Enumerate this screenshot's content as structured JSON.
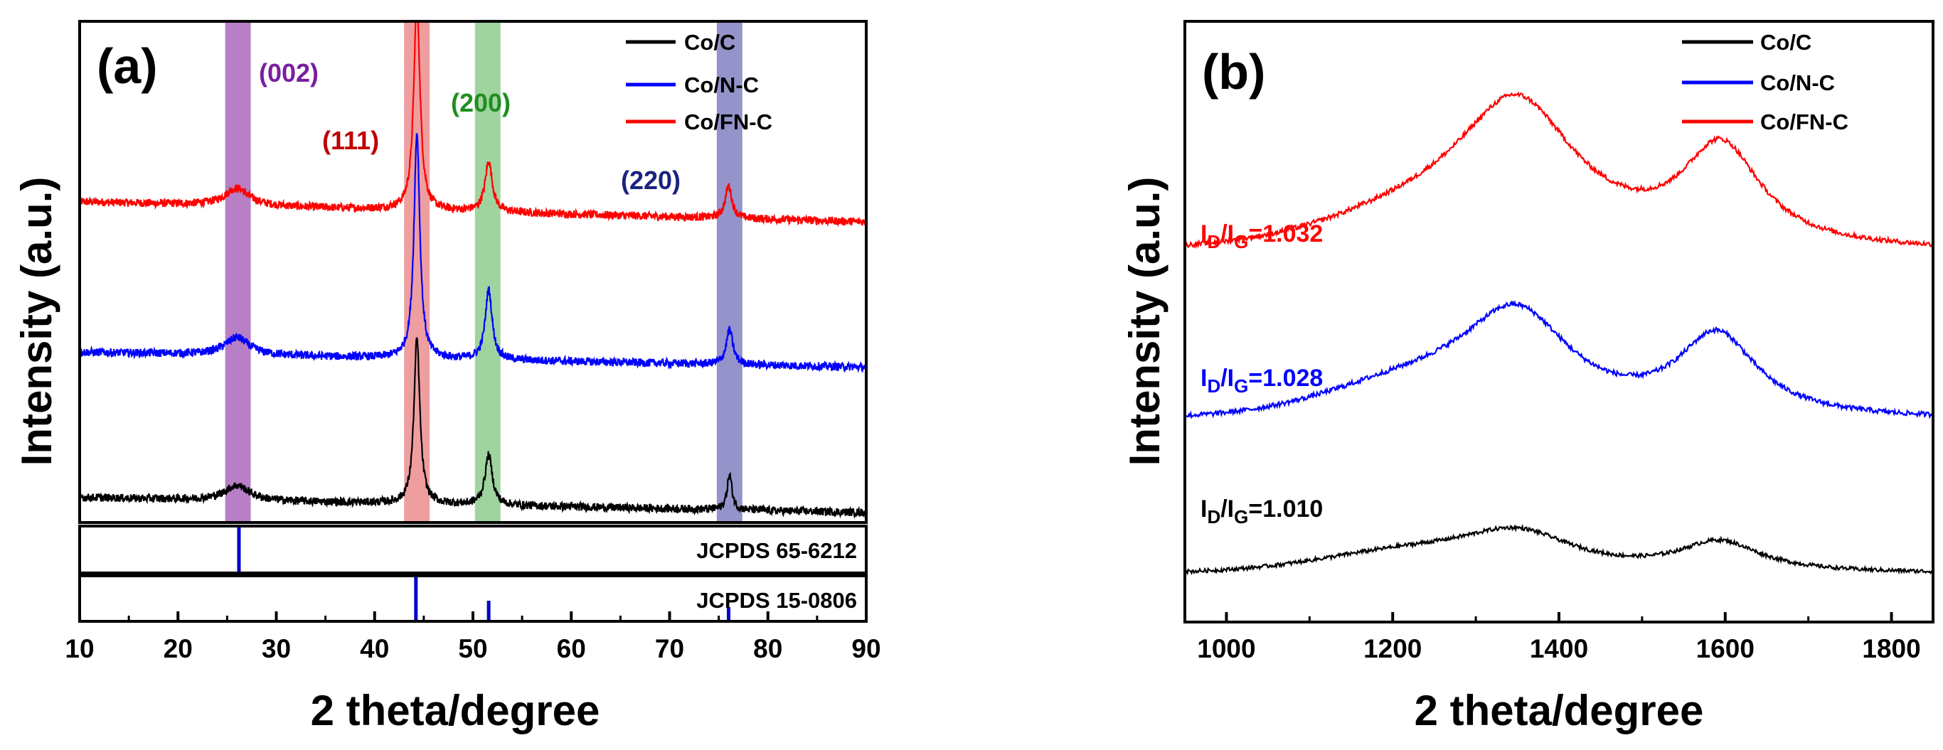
{
  "chart_data": [
    {
      "panel_label": "(a)",
      "type": "line",
      "xlabel": "2 theta/degree",
      "ylabel": "Intensity (a.u.)",
      "xlim": [
        10,
        90
      ],
      "x_ticks": [
        "10",
        "20",
        "30",
        "40",
        "50",
        "60",
        "70",
        "80",
        "90"
      ],
      "x_tick_values": [
        10,
        20,
        30,
        40,
        50,
        60,
        70,
        80,
        90
      ],
      "legend": {
        "placement": "top-right",
        "entries": [
          {
            "name": "Co/C",
            "color": "#000000"
          },
          {
            "name": "Co/N-C",
            "color": "#0000ff"
          },
          {
            "name": "Co/FN-C",
            "color": "#ff0000"
          }
        ]
      },
      "highlight_bands": [
        {
          "label": "(002)",
          "from": 24.8,
          "to": 27.4,
          "color": "#9b4fb0",
          "label_color": "#7a1f9e"
        },
        {
          "label": "(111)",
          "from": 43.0,
          "to": 45.6,
          "color": "#e8787a",
          "label_color": "#c00000"
        },
        {
          "label": "(200)",
          "from": 50.2,
          "to": 52.8,
          "color": "#7cc47a",
          "label_color": "#1f8f1f"
        },
        {
          "label": "(220)",
          "from": 74.8,
          "to": 77.4,
          "color": "#6b6bb5",
          "label_color": "#1a237e"
        }
      ],
      "series": [
        {
          "name": "Co/FN-C",
          "color": "#ff0000",
          "baseline": 0.6,
          "trend": 0.04,
          "noise": 0.01,
          "peaks": [
            {
              "center": 26.0,
              "height": 0.035,
              "width": 1.5
            },
            {
              "center": 44.3,
              "height": 0.42,
              "width": 0.38
            },
            {
              "center": 51.6,
              "height": 0.1,
              "width": 0.45
            },
            {
              "center": 76.0,
              "height": 0.065,
              "width": 0.4
            }
          ]
        },
        {
          "name": "Co/N-C",
          "color": "#0000ff",
          "baseline": 0.31,
          "trend": 0.03,
          "noise": 0.01,
          "peaks": [
            {
              "center": 26.0,
              "height": 0.035,
              "width": 1.5
            },
            {
              "center": 44.3,
              "height": 0.45,
              "width": 0.36
            },
            {
              "center": 51.6,
              "height": 0.14,
              "width": 0.42
            },
            {
              "center": 76.1,
              "height": 0.07,
              "width": 0.4
            }
          ]
        },
        {
          "name": "Co/C",
          "color": "#000000",
          "baseline": 0.02,
          "trend": 0.03,
          "noise": 0.01,
          "peaks": [
            {
              "center": 26.0,
              "height": 0.03,
              "width": 1.5
            },
            {
              "center": 44.3,
              "height": 0.33,
              "width": 0.36
            },
            {
              "center": 51.6,
              "height": 0.1,
              "width": 0.45
            },
            {
              "center": 76.1,
              "height": 0.07,
              "width": 0.3
            }
          ]
        }
      ],
      "references": [
        {
          "label": "JCPDS 65-6212",
          "sticks": [
            {
              "x": 26.2,
              "intensity": 1.0
            }
          ]
        },
        {
          "label": "JCPDS 15-0806",
          "sticks": [
            {
              "x": 44.2,
              "intensity": 1.0
            },
            {
              "x": 51.6,
              "intensity": 0.45
            },
            {
              "x": 76.0,
              "intensity": 0.3
            }
          ]
        }
      ]
    },
    {
      "panel_label": "(b)",
      "type": "line",
      "xlabel": "2 theta/degree",
      "ylabel": "Intensity (a.u.)",
      "xlim": [
        950,
        1850
      ],
      "x_ticks": [
        "1000",
        "1200",
        "1400",
        "1600",
        "1800"
      ],
      "x_tick_values": [
        1000,
        1200,
        1400,
        1600,
        1800
      ],
      "legend": {
        "placement": "top-right",
        "entries": [
          {
            "name": "Co/C",
            "color": "#000000"
          },
          {
            "name": "Co/N-C",
            "color": "#0000ff"
          },
          {
            "name": "Co/FN-C",
            "color": "#ff0000"
          }
        ]
      },
      "series": [
        {
          "name": "Co/FN-C",
          "color": "#ff0000",
          "ratio_text": "1.032",
          "baseline": 0.615,
          "noise": 0.005,
          "shoulder": {
            "center": 1270,
            "height": 0.06,
            "width": 180
          },
          "peaks": [
            {
              "center": 1350,
              "height": 0.205,
              "width": 85
            },
            {
              "center": 1595,
              "height": 0.165,
              "width": 58
            }
          ]
        },
        {
          "name": "Co/N-C",
          "color": "#0000ff",
          "ratio_text": "1.028",
          "baseline": 0.335,
          "noise": 0.005,
          "shoulder": {
            "center": 1230,
            "height": 0.05,
            "width": 150
          },
          "peaks": [
            {
              "center": 1350,
              "height": 0.16,
              "width": 80
            },
            {
              "center": 1590,
              "height": 0.135,
              "width": 58
            }
          ]
        },
        {
          "name": "Co/C",
          "color": "#000000",
          "ratio_text": "1.010",
          "baseline": 0.08,
          "noise": 0.004,
          "shoulder": {
            "center": 1220,
            "height": 0.03,
            "width": 150
          },
          "peaks": [
            {
              "center": 1352,
              "height": 0.06,
              "width": 85
            },
            {
              "center": 1593,
              "height": 0.05,
              "width": 60
            }
          ]
        }
      ],
      "ratio_label": {
        "prefix": "I",
        "sub_d": "D",
        "slash": "/I",
        "sub_g": "G",
        "equals": "="
      }
    }
  ]
}
